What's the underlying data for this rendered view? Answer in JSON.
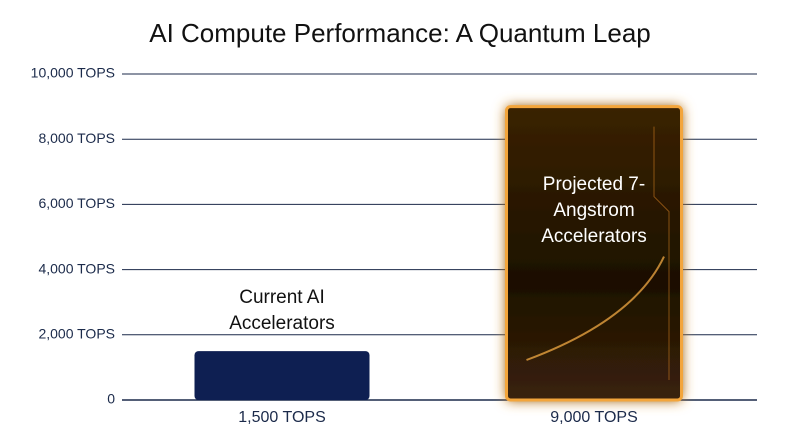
{
  "chart_data": {
    "type": "bar",
    "title": "AI Compute Performance: A Quantum Leap",
    "categories": [
      "Current AI Accelerators",
      "Projected 7-Angstrom Accelerators"
    ],
    "values": [
      1500,
      9000
    ],
    "value_labels": [
      "1,500 TOPS",
      "9,000 TOPS"
    ],
    "colors": [
      "#0e1f52",
      "#2a1804"
    ],
    "ylim": [
      0,
      10000
    ],
    "yticks": [
      0,
      {
        "value": 2000,
        "label": "2,000 TOPS"
      },
      {
        "value": 4000,
        "label": "4,000 TOPS"
      },
      {
        "value": 6000,
        "label": "6,000 TOPS"
      },
      {
        "value": 8000,
        "label": "8,000 TOPS"
      },
      {
        "value": 10000,
        "label": "10,000 TOPS"
      }
    ],
    "grid": true
  }
}
